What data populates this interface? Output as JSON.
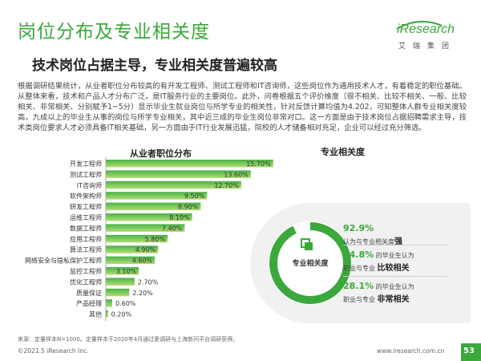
{
  "header": {
    "title": "岗位分布及专业相关度",
    "subtitle": "技术岗位占据主导，专业相关度普遍较高"
  },
  "logo": {
    "word": "iResearch",
    "cn": "艾瑞集团"
  },
  "body_text": "根据调研结果统计，从业者职位分布较高的有开发工程师、测试工程师和IT咨询师，这些岗位作为通用技术人才，有着稳定的职位基础。从整体来看，技术和产品人才分布广泛，是IT服务行业的主要岗位。此外，问卷根据五个评价维度（很不相关、比较不相关、一般、比较相关、非常相关、分别赋予1~5分）显示毕业生就业岗位与所学专业的相关性，针对反馈计算均值为4.202，可知整体人群专业相关度较高，九成以上的毕业生从事的岗位与所学专业相关，其中近三成的毕业生岗位非常对口。这一方面是由于技术岗位占据招聘需求主导，技术类岗位要求人才必须具备IT相关基础，另一方面由于IT行业发展迅猛，院校的人才储备相对充足，企业可以经过充分筛选。",
  "chart_data": [
    {
      "type": "bar",
      "orientation": "horizontal",
      "title": "从业者职位分布",
      "categories": [
        "开发工程师",
        "测试工程师",
        "IT咨询师",
        "软件架构师",
        "研发工程师",
        "运维工程师",
        "数据工程师",
        "应用工程师",
        "算法工程师",
        "网络安全与隐私保护工程师",
        "监控工程师",
        "优化工程师",
        "质量保证",
        "产品经理",
        "其他"
      ],
      "values": [
        15.7,
        13.6,
        12.7,
        9.5,
        8.9,
        8.1,
        7.4,
        5.8,
        4.9,
        4.6,
        3.1,
        2.7,
        2.2,
        0.6,
        0.2
      ],
      "value_labels": [
        "15.70%",
        "13.60%",
        "12.70%",
        "9.50%",
        "8.90%",
        "8.10%",
        "7.40%",
        "5.80%",
        "4.90%",
        "4.60%",
        "3.10%",
        "2.70%",
        "2.20%",
        "0.60%",
        "0.20%"
      ],
      "unit": "%",
      "xlim": [
        0,
        17
      ]
    },
    {
      "type": "pie",
      "style": "donut",
      "title": "专业相关度",
      "center_label": "专业相关度",
      "values": [
        92.9,
        7.1
      ],
      "highlight": "92.9%"
    }
  ],
  "stats": [
    {
      "pct": "92.9%",
      "desc": "认为与专业相关度",
      "em": "强"
    },
    {
      "pct": "64.8%",
      "desc": "的毕业生认为",
      "desc2": "职业与专业",
      "em": "比较相关"
    },
    {
      "pct": "28.1%",
      "desc": "的毕业生认为",
      "desc2": "职业与专业",
      "em": "非常相关"
    }
  ],
  "colors": {
    "accent": "#3aa83a",
    "bar_top": "#46b446",
    "bar_bottom": "#b5dc72",
    "donut_ring": "#3aa83a",
    "panel": "#f1f1f1"
  },
  "footer": {
    "source": "来源：定量样本N=1000。定量样本于2020年4月通过爱调研与上海新问平台调研获得。",
    "copyright": "©2021.5 iResearch Inc.",
    "website": "www.iresearch.com.cn",
    "page": "53"
  }
}
